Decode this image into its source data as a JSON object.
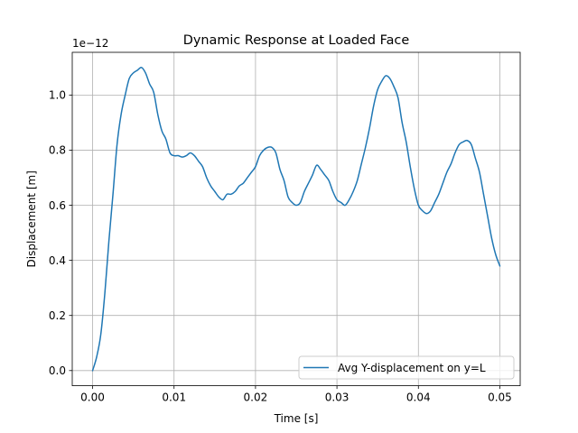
{
  "chart_data": {
    "type": "line",
    "title": "Dynamic Response at Loaded Face",
    "xlabel": "Time [s]",
    "ylabel": "Displacement [m]",
    "y_offset_label": "1e−12",
    "xlim": [
      -0.0025,
      0.0525
    ],
    "ylim": [
      -0.055,
      1.155
    ],
    "x_ticks": [
      0.0,
      0.01,
      0.02,
      0.03,
      0.04,
      0.05
    ],
    "x_tick_labels": [
      "0.00",
      "0.01",
      "0.02",
      "0.03",
      "0.04",
      "0.05"
    ],
    "y_ticks": [
      0.0,
      0.2,
      0.4,
      0.6,
      0.8,
      1.0
    ],
    "y_tick_labels": [
      "0.0",
      "0.2",
      "0.4",
      "0.6",
      "0.8",
      "1.0"
    ],
    "grid": true,
    "legend_position": "lower-right",
    "series": [
      {
        "name": "Avg Y-displacement on y=L",
        "color": "#1f77b4",
        "x": [
          0.0,
          0.0005,
          0.001,
          0.0015,
          0.002,
          0.0025,
          0.003,
          0.0035,
          0.004,
          0.0045,
          0.005,
          0.0055,
          0.006,
          0.0065,
          0.007,
          0.0075,
          0.008,
          0.0085,
          0.009,
          0.0095,
          0.01,
          0.0105,
          0.011,
          0.0115,
          0.012,
          0.0125,
          0.013,
          0.0135,
          0.014,
          0.0145,
          0.015,
          0.0155,
          0.016,
          0.0165,
          0.017,
          0.0175,
          0.018,
          0.0185,
          0.019,
          0.0195,
          0.02,
          0.0205,
          0.021,
          0.0215,
          0.022,
          0.0225,
          0.023,
          0.0235,
          0.024,
          0.0245,
          0.025,
          0.0255,
          0.026,
          0.0265,
          0.027,
          0.0275,
          0.028,
          0.0285,
          0.029,
          0.0295,
          0.03,
          0.0305,
          0.031,
          0.0315,
          0.032,
          0.0325,
          0.033,
          0.0335,
          0.034,
          0.0345,
          0.035,
          0.0355,
          0.036,
          0.0365,
          0.037,
          0.0375,
          0.038,
          0.0385,
          0.039,
          0.0395,
          0.04,
          0.0405,
          0.041,
          0.0415,
          0.042,
          0.0425,
          0.043,
          0.0435,
          0.044,
          0.0445,
          0.045,
          0.0455,
          0.046,
          0.0465,
          0.047,
          0.0475,
          0.048,
          0.0485,
          0.049,
          0.0495,
          0.05
        ],
        "y": [
          0.0,
          0.05,
          0.13,
          0.28,
          0.47,
          0.64,
          0.82,
          0.93,
          1.0,
          1.06,
          1.08,
          1.09,
          1.1,
          1.08,
          1.04,
          1.01,
          0.93,
          0.87,
          0.84,
          0.79,
          0.78,
          0.78,
          0.775,
          0.78,
          0.79,
          0.78,
          0.76,
          0.74,
          0.7,
          0.67,
          0.65,
          0.63,
          0.62,
          0.64,
          0.64,
          0.65,
          0.67,
          0.68,
          0.7,
          0.72,
          0.74,
          0.78,
          0.8,
          0.81,
          0.81,
          0.79,
          0.73,
          0.69,
          0.63,
          0.61,
          0.6,
          0.61,
          0.65,
          0.68,
          0.71,
          0.745,
          0.73,
          0.71,
          0.69,
          0.65,
          0.62,
          0.61,
          0.6,
          0.62,
          0.65,
          0.69,
          0.75,
          0.81,
          0.88,
          0.96,
          1.02,
          1.05,
          1.07,
          1.06,
          1.03,
          0.99,
          0.9,
          0.83,
          0.74,
          0.66,
          0.6,
          0.58,
          0.57,
          0.58,
          0.61,
          0.64,
          0.68,
          0.72,
          0.75,
          0.79,
          0.82,
          0.83,
          0.835,
          0.82,
          0.77,
          0.72,
          0.64,
          0.56,
          0.48,
          0.42,
          0.38
        ]
      }
    ]
  }
}
